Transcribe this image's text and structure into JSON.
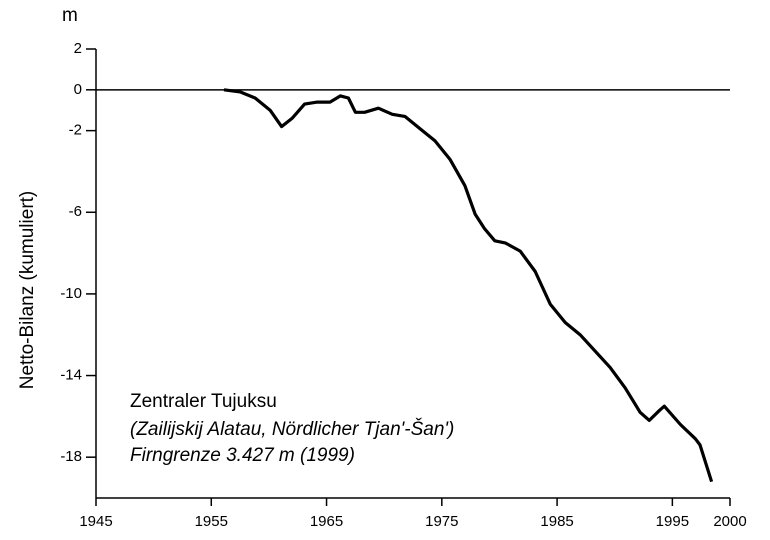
{
  "chart_data": {
    "type": "line",
    "y_unit": "m",
    "y_label": "Netto-Bilanz (kumuliert)",
    "annotation": [
      "Zentraler Tujuksu",
      "(Zailijskij Alatau, Nördlicher Tjan'-Šan')",
      "Firngrenze 3.427 m (1999)"
    ],
    "xlim": [
      1945,
      2000
    ],
    "xticks": [
      1945,
      1955,
      1965,
      1975,
      1985,
      1995,
      2000
    ],
    "ylim": [
      -20,
      2
    ],
    "yticks": [
      2,
      0,
      -2,
      -6,
      -10,
      -14,
      -18
    ],
    "color": "#000000",
    "x": [
      1956.1,
      1957.5,
      1958.8,
      1960.1,
      1961.1,
      1962.0,
      1963.1,
      1964.2,
      1965.3,
      1966.2,
      1966.9,
      1967.5,
      1968.3,
      1969.5,
      1970.7,
      1971.8,
      1973.1,
      1974.4,
      1975.7,
      1977.0,
      1977.9,
      1978.7,
      1979.6,
      1980.5,
      1981.8,
      1983.1,
      1984.4,
      1985.7,
      1987.0,
      1988.3,
      1989.6,
      1990.9,
      1992.2,
      1993.0,
      1993.9,
      1994.3,
      1995.7,
      1997.0,
      1997.4,
      1998.4
    ],
    "values": [
      0.0,
      -0.1,
      -0.4,
      -1.0,
      -1.8,
      -1.4,
      -0.7,
      -0.6,
      -0.6,
      -0.3,
      -0.4,
      -1.1,
      -1.1,
      -0.9,
      -1.2,
      -1.3,
      -1.9,
      -2.5,
      -3.4,
      -4.7,
      -6.1,
      -6.8,
      -7.4,
      -7.5,
      -7.9,
      -8.9,
      -10.5,
      -11.4,
      -12.0,
      -12.8,
      -13.6,
      -14.6,
      -15.8,
      -16.2,
      -15.7,
      -15.5,
      -16.4,
      -17.1,
      -17.4,
      -19.2
    ]
  }
}
